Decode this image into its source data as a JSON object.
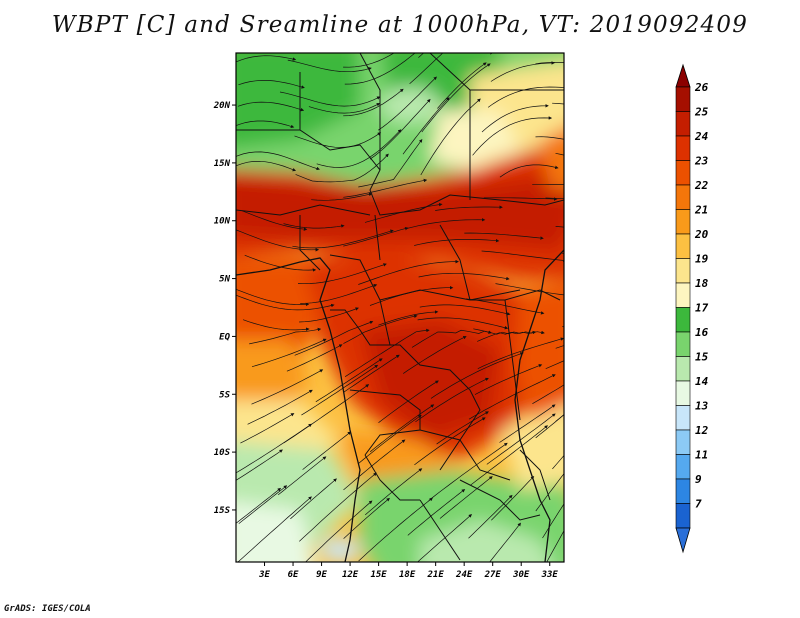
{
  "title": "WBPT [C] and Sreamline at 1000hPa, VT: 2019092409",
  "credit": "GrADS: IGES/COLA",
  "map": {
    "lat_labels": [
      "20N",
      "15N",
      "10N",
      "5N",
      "EQ",
      "5S",
      "10S",
      "15S"
    ],
    "lat_values": [
      20,
      15,
      10,
      5,
      0,
      -5,
      -10,
      -15
    ],
    "lon_labels": [
      "3E",
      "6E",
      "9E",
      "12E",
      "15E",
      "18E",
      "21E",
      "24E",
      "27E",
      "30E",
      "33E"
    ],
    "lon_values": [
      3,
      6,
      9,
      12,
      15,
      18,
      21,
      24,
      27,
      30,
      33
    ],
    "lon_range": [
      0,
      34.5
    ],
    "lat_range": [
      -19.5,
      24.5
    ]
  },
  "legend": {
    "labels": [
      "26",
      "25",
      "24",
      "23",
      "22",
      "21",
      "20",
      "19",
      "18",
      "17",
      "16",
      "15",
      "14",
      "13",
      "12",
      "11",
      "9",
      "7"
    ],
    "colors": [
      "#a50f00",
      "#c41e00",
      "#dd3100",
      "#ec5100",
      "#f4760a",
      "#f99a1a",
      "#fcc042",
      "#fce58d",
      "#fdf5c0",
      "#3cb83c",
      "#79d46d",
      "#b9e9ae",
      "#e8f9e3",
      "#c8e6fa",
      "#8ccaf5",
      "#55a9ef",
      "#2d86e3",
      "#1a63d1"
    ]
  }
}
